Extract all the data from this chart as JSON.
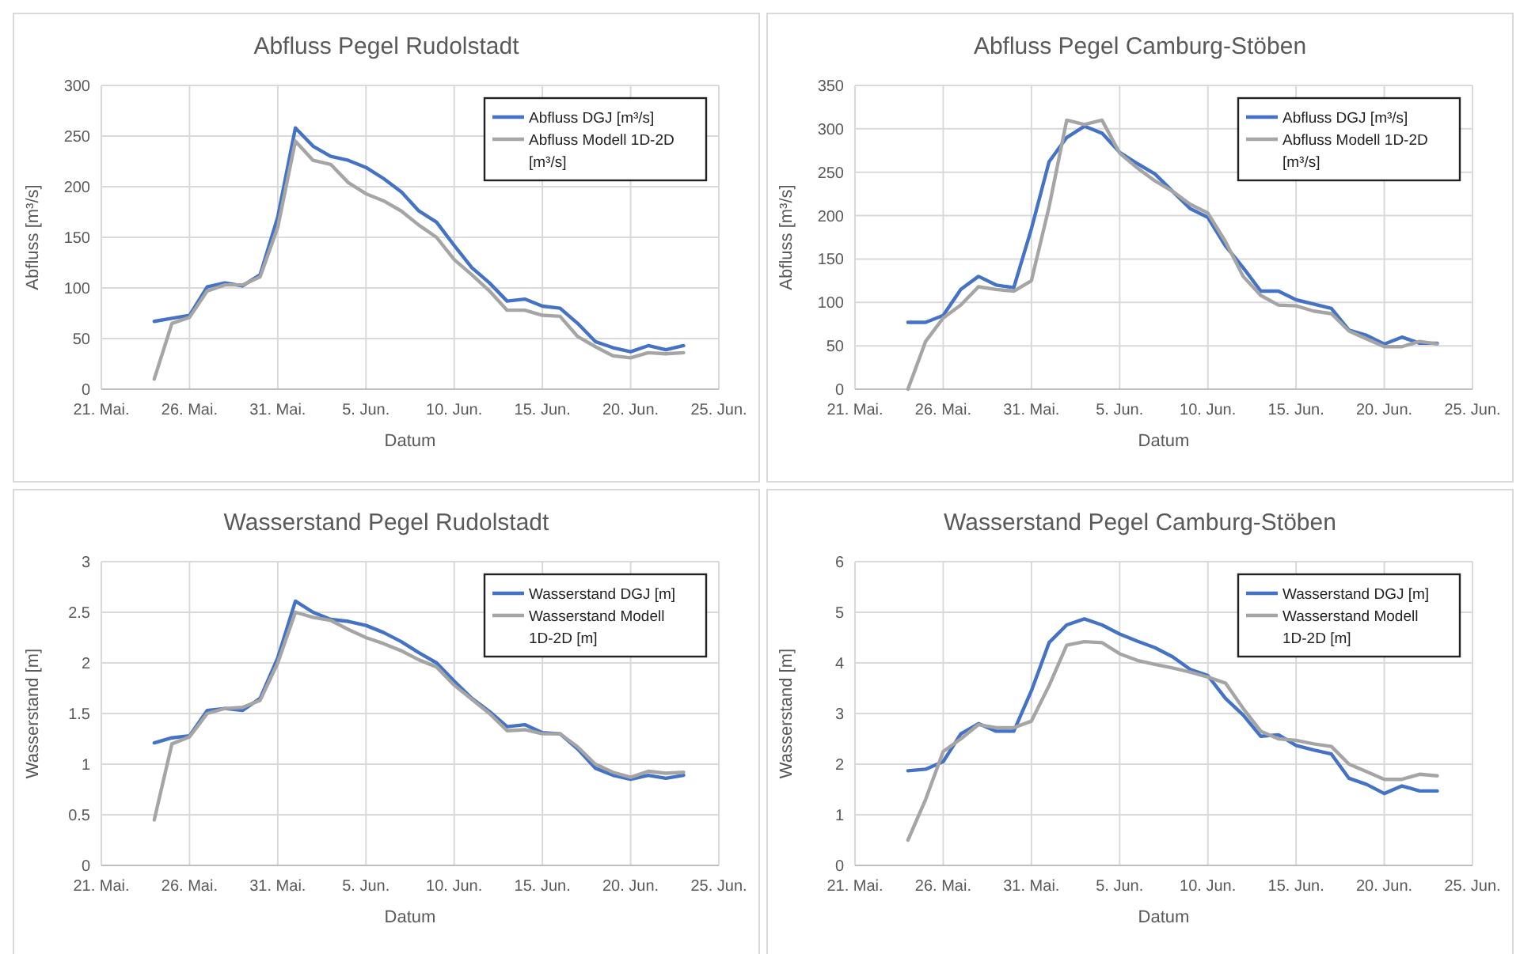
{
  "chart_data": [
    {
      "type": "line",
      "title": "Abfluss Pegel Rudolstadt",
      "xlabel": "Datum",
      "ylabel": "Abfluss [m³/s]",
      "x": [
        "--05-24",
        "--05-25",
        "--05-26",
        "--05-27",
        "--05-28",
        "--05-29",
        "--05-30",
        "--05-31",
        "--06-01",
        "--06-02",
        "--06-03",
        "--06-04",
        "--06-05",
        "--06-06",
        "--06-07",
        "--06-08",
        "--06-09",
        "--06-10",
        "--06-11",
        "--06-12",
        "--06-13",
        "--06-14",
        "--06-15",
        "--06-16",
        "--06-17",
        "--06-18",
        "--06-19",
        "--06-20",
        "--06-21",
        "--06-22",
        "--06-23"
      ],
      "xlim": [
        "--05-21",
        "--06-25"
      ],
      "xticks": [
        {
          "value": "--05-21",
          "label": "21. Mai."
        },
        {
          "value": "--05-26",
          "label": "26. Mai."
        },
        {
          "value": "--05-31",
          "label": "31. Mai."
        },
        {
          "value": "--06-05",
          "label": "5. Jun."
        },
        {
          "value": "--06-10",
          "label": "10. Jun."
        },
        {
          "value": "--06-15",
          "label": "15. Jun."
        },
        {
          "value": "--06-20",
          "label": "20. Jun."
        },
        {
          "value": "--06-25",
          "label": "25. Jun."
        }
      ],
      "ylim": [
        0,
        300
      ],
      "yticks": [
        0,
        50,
        100,
        150,
        200,
        250,
        300
      ],
      "grid": true,
      "legend": "top right",
      "series": [
        {
          "name": "Abfluss DGJ [m³/s]",
          "color": "#4472c4",
          "values": [
            67,
            70,
            73,
            101,
            105,
            102,
            113,
            170,
            258,
            240,
            230,
            226,
            219,
            208,
            195,
            176,
            165,
            142,
            120,
            105,
            87,
            89,
            82,
            80,
            65,
            47,
            41,
            37,
            43,
            39,
            43
          ]
        },
        {
          "name": "Abfluss Modell 1D-2D [m³/s]",
          "color": "#a5a5a5",
          "values": [
            10,
            65,
            71,
            97,
            103,
            103,
            111,
            160,
            245,
            226,
            222,
            204,
            193,
            186,
            176,
            162,
            150,
            128,
            113,
            97,
            78,
            78,
            73,
            72,
            52,
            42,
            33,
            31,
            36,
            35,
            36
          ]
        }
      ]
    },
    {
      "type": "line",
      "title": "Abfluss Pegel Camburg-Stöben",
      "xlabel": "Datum",
      "ylabel": "Abfluss [m³/s]",
      "x": [
        "--05-24",
        "--05-25",
        "--05-26",
        "--05-27",
        "--05-28",
        "--05-29",
        "--05-30",
        "--05-31",
        "--06-01",
        "--06-02",
        "--06-03",
        "--06-04",
        "--06-05",
        "--06-06",
        "--06-07",
        "--06-08",
        "--06-09",
        "--06-10",
        "--06-11",
        "--06-12",
        "--06-13",
        "--06-14",
        "--06-15",
        "--06-16",
        "--06-17",
        "--06-18",
        "--06-19",
        "--06-20",
        "--06-21",
        "--06-22",
        "--06-23"
      ],
      "xlim": [
        "--05-21",
        "--06-25"
      ],
      "xticks": [
        {
          "value": "--05-21",
          "label": "21. Mai."
        },
        {
          "value": "--05-26",
          "label": "26. Mai."
        },
        {
          "value": "--05-31",
          "label": "31. Mai."
        },
        {
          "value": "--06-05",
          "label": "5. Jun."
        },
        {
          "value": "--06-10",
          "label": "10. Jun."
        },
        {
          "value": "--06-15",
          "label": "15. Jun."
        },
        {
          "value": "--06-20",
          "label": "20. Jun."
        },
        {
          "value": "--06-25",
          "label": "25. Jun."
        }
      ],
      "ylim": [
        0,
        350
      ],
      "yticks": [
        0,
        50,
        100,
        150,
        200,
        250,
        300,
        350
      ],
      "grid": true,
      "legend": "top right",
      "series": [
        {
          "name": "Abfluss DGJ [m³/s]",
          "color": "#4472c4",
          "values": [
            77,
            77,
            85,
            115,
            130,
            120,
            117,
            185,
            262,
            290,
            303,
            295,
            273,
            260,
            248,
            228,
            208,
            198,
            165,
            140,
            113,
            113,
            103,
            98,
            93,
            68,
            62,
            52,
            60,
            53,
            53
          ]
        },
        {
          "name": "Abfluss Modell 1D-2D [m³/s]",
          "color": "#a5a5a5",
          "values": [
            0,
            55,
            82,
            97,
            118,
            115,
            113,
            125,
            210,
            310,
            305,
            310,
            272,
            255,
            240,
            228,
            213,
            203,
            170,
            130,
            108,
            97,
            96,
            90,
            87,
            67,
            58,
            49,
            49,
            55,
            52
          ]
        }
      ]
    },
    {
      "type": "line",
      "title": "Wasserstand Pegel Rudolstadt",
      "xlabel": "Datum",
      "ylabel": "Wasserstand [m]",
      "x": [
        "--05-24",
        "--05-25",
        "--05-26",
        "--05-27",
        "--05-28",
        "--05-29",
        "--05-30",
        "--05-31",
        "--06-01",
        "--06-02",
        "--06-03",
        "--06-04",
        "--06-05",
        "--06-06",
        "--06-07",
        "--06-08",
        "--06-09",
        "--06-10",
        "--06-11",
        "--06-12",
        "--06-13",
        "--06-14",
        "--06-15",
        "--06-16",
        "--06-17",
        "--06-18",
        "--06-19",
        "--06-20",
        "--06-21",
        "--06-22",
        "--06-23"
      ],
      "xlim": [
        "--05-21",
        "--06-25"
      ],
      "xticks": [
        {
          "value": "--05-21",
          "label": "21. Mai."
        },
        {
          "value": "--05-26",
          "label": "26. Mai."
        },
        {
          "value": "--05-31",
          "label": "31. Mai."
        },
        {
          "value": "--06-05",
          "label": "5. Jun."
        },
        {
          "value": "--06-10",
          "label": "10. Jun."
        },
        {
          "value": "--06-15",
          "label": "15. Jun."
        },
        {
          "value": "--06-20",
          "label": "20. Jun."
        },
        {
          "value": "--06-25",
          "label": "25. Jun."
        }
      ],
      "ylim": [
        0,
        3
      ],
      "yticks": [
        0,
        0.5,
        1,
        1.5,
        2,
        2.5,
        3
      ],
      "grid": true,
      "legend": "top right",
      "series": [
        {
          "name": "Wasserstand DGJ [m]",
          "color": "#4472c4",
          "values": [
            1.21,
            1.26,
            1.28,
            1.53,
            1.55,
            1.53,
            1.65,
            2.05,
            2.61,
            2.5,
            2.43,
            2.41,
            2.37,
            2.3,
            2.21,
            2.1,
            2.0,
            1.82,
            1.65,
            1.52,
            1.37,
            1.39,
            1.31,
            1.3,
            1.15,
            0.96,
            0.89,
            0.85,
            0.89,
            0.86,
            0.89
          ]
        },
        {
          "name": "Wasserstand Modell 1D-2D [m]",
          "color": "#a5a5a5",
          "values": [
            0.45,
            1.2,
            1.27,
            1.5,
            1.55,
            1.56,
            1.63,
            2.0,
            2.5,
            2.45,
            2.42,
            2.33,
            2.25,
            2.19,
            2.12,
            2.03,
            1.96,
            1.78,
            1.64,
            1.5,
            1.33,
            1.34,
            1.3,
            1.3,
            1.17,
            1.0,
            0.92,
            0.87,
            0.93,
            0.91,
            0.92
          ]
        }
      ]
    },
    {
      "type": "line",
      "title": "Wasserstand Pegel Camburg-Stöben",
      "xlabel": "Datum",
      "ylabel": "Wasserstand [m]",
      "x": [
        "--05-24",
        "--05-25",
        "--05-26",
        "--05-27",
        "--05-28",
        "--05-29",
        "--05-30",
        "--05-31",
        "--06-01",
        "--06-02",
        "--06-03",
        "--06-04",
        "--06-05",
        "--06-06",
        "--06-07",
        "--06-08",
        "--06-09",
        "--06-10",
        "--06-11",
        "--06-12",
        "--06-13",
        "--06-14",
        "--06-15",
        "--06-16",
        "--06-17",
        "--06-18",
        "--06-19",
        "--06-20",
        "--06-21",
        "--06-22",
        "--06-23"
      ],
      "xlim": [
        "--05-21",
        "--06-25"
      ],
      "xticks": [
        {
          "value": "--05-21",
          "label": "21. Mai."
        },
        {
          "value": "--05-26",
          "label": "26. Mai."
        },
        {
          "value": "--05-31",
          "label": "31. Mai."
        },
        {
          "value": "--06-05",
          "label": "5. Jun."
        },
        {
          "value": "--06-10",
          "label": "10. Jun."
        },
        {
          "value": "--06-15",
          "label": "15. Jun."
        },
        {
          "value": "--06-20",
          "label": "20. Jun."
        },
        {
          "value": "--06-25",
          "label": "25. Jun."
        }
      ],
      "ylim": [
        0,
        6
      ],
      "yticks": [
        0,
        1,
        2,
        3,
        4,
        5,
        6
      ],
      "grid": true,
      "legend": "top right",
      "series": [
        {
          "name": "Wasserstand DGJ [m]",
          "color": "#4472c4",
          "values": [
            1.87,
            1.9,
            2.05,
            2.6,
            2.8,
            2.65,
            2.65,
            3.45,
            4.4,
            4.75,
            4.87,
            4.75,
            4.57,
            4.43,
            4.3,
            4.12,
            3.87,
            3.75,
            3.3,
            2.97,
            2.55,
            2.58,
            2.37,
            2.28,
            2.2,
            1.72,
            1.6,
            1.42,
            1.57,
            1.47,
            1.47
          ]
        },
        {
          "name": "Wasserstand Modell 1D-2D [m]",
          "color": "#a5a5a5",
          "values": [
            0.5,
            1.3,
            2.25,
            2.5,
            2.78,
            2.72,
            2.72,
            2.85,
            3.55,
            4.35,
            4.42,
            4.4,
            4.18,
            4.05,
            3.97,
            3.9,
            3.82,
            3.72,
            3.6,
            3.1,
            2.65,
            2.5,
            2.47,
            2.4,
            2.35,
            2.0,
            1.85,
            1.7,
            1.7,
            1.8,
            1.77
          ]
        }
      ]
    }
  ]
}
